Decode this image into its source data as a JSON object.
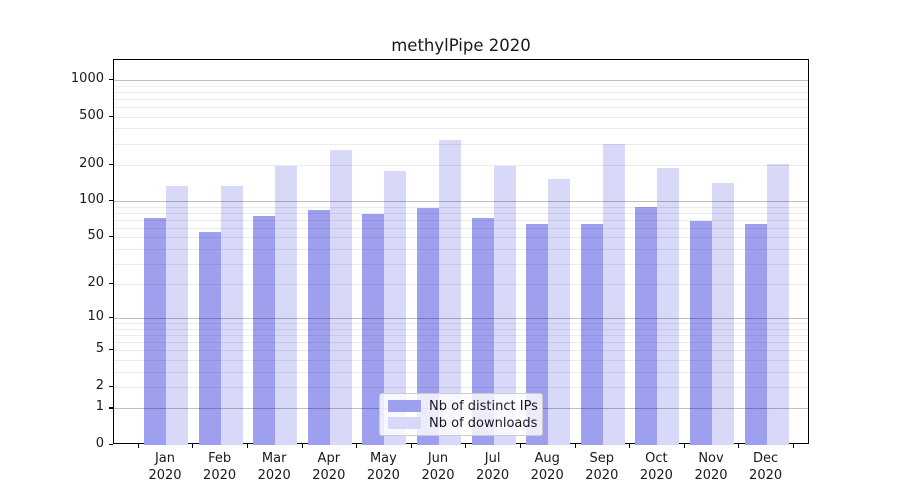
{
  "title": "methylPipe 2020",
  "chart_data": {
    "type": "bar",
    "title": "methylPipe 2020",
    "categories": [
      "Jan 2020",
      "Feb 2020",
      "Mar 2020",
      "Apr 2020",
      "May 2020",
      "Jun 2020",
      "Jul 2020",
      "Aug 2020",
      "Sep 2020",
      "Oct 2020",
      "Nov 2020",
      "Dec 2020"
    ],
    "month_line1": [
      "Jan",
      "Feb",
      "Mar",
      "Apr",
      "May",
      "Jun",
      "Jul",
      "Aug",
      "Sep",
      "Oct",
      "Nov",
      "Dec"
    ],
    "month_line2": "2020",
    "series": [
      {
        "name": "Nb of distinct IPs",
        "color": "#9f9ff0",
        "values": [
          72,
          55,
          75,
          85,
          79,
          88,
          72,
          65,
          65,
          90,
          68,
          65
        ]
      },
      {
        "name": "Nb of downloads",
        "color": "#d8d8f8",
        "values": [
          135,
          135,
          195,
          265,
          178,
          320,
          195,
          152,
          300,
          188,
          141,
          205
        ]
      }
    ],
    "y_ticks": [
      0,
      1,
      2,
      5,
      10,
      20,
      50,
      100,
      200,
      500,
      1000
    ],
    "y_tick_labels": [
      "0",
      "1",
      "2",
      "5",
      "10",
      "20",
      "50",
      "100",
      "200",
      "500",
      "1000"
    ],
    "y_scale": "log1p",
    "ylim": [
      0,
      1500
    ],
    "xlabel": "",
    "ylabel": "",
    "grid": true,
    "legend_position": "lower-center",
    "axis_color": "#000000",
    "background_color": "#ffffff"
  }
}
